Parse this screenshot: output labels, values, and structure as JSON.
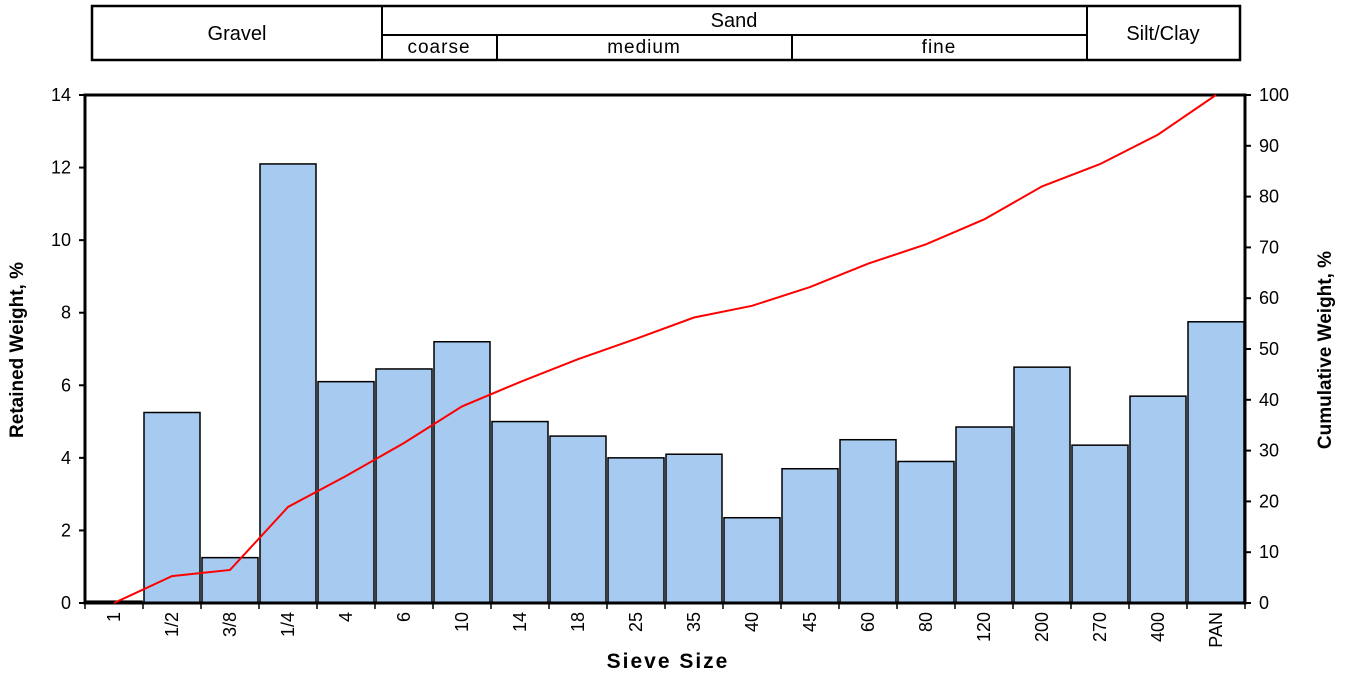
{
  "classification": {
    "gravel": "Gravel",
    "sand": "Sand",
    "silt_clay": "Silt/Clay",
    "sand_sub": [
      "coarse",
      "medium",
      "fine"
    ]
  },
  "colors": {
    "bar_fill": "#a6caf0",
    "bar_stroke": "#000000",
    "line": "#ff0000"
  },
  "chart_data": {
    "type": "bar",
    "xlabel": "Sieve Size",
    "ylabel": "Retained Weight, %",
    "y2label": "Cumulative Weight, %",
    "categories": [
      "1",
      "1/2",
      "3/8",
      "1/4",
      "4",
      "6",
      "10",
      "14",
      "18",
      "25",
      "35",
      "40",
      "45",
      "60",
      "80",
      "120",
      "200",
      "270",
      "400",
      "PAN"
    ],
    "ylim": [
      0,
      14
    ],
    "y2lim": [
      0,
      100
    ],
    "yticks": [
      "0",
      "2",
      "4",
      "6",
      "8",
      "10",
      "12",
      "14"
    ],
    "y2ticks": [
      "0",
      "10",
      "20",
      "30",
      "40",
      "50",
      "60",
      "70",
      "80",
      "90",
      "100"
    ],
    "grid": false,
    "series": [
      {
        "type": "bar",
        "axis": "left",
        "values": [
          0.05,
          5.25,
          1.25,
          12.1,
          6.1,
          6.45,
          7.2,
          5.0,
          4.6,
          4.0,
          4.1,
          2.35,
          3.7,
          4.5,
          3.9,
          4.85,
          6.5,
          4.35,
          5.7,
          7.75
        ]
      },
      {
        "type": "line",
        "axis": "right",
        "values": [
          0,
          5.3,
          6.5,
          18.9,
          25.0,
          31.5,
          38.7,
          43.5,
          48.0,
          52.0,
          56.2,
          58.5,
          62.2,
          66.8,
          70.6,
          75.5,
          82.0,
          86.4,
          92.2,
          100
        ]
      }
    ]
  }
}
